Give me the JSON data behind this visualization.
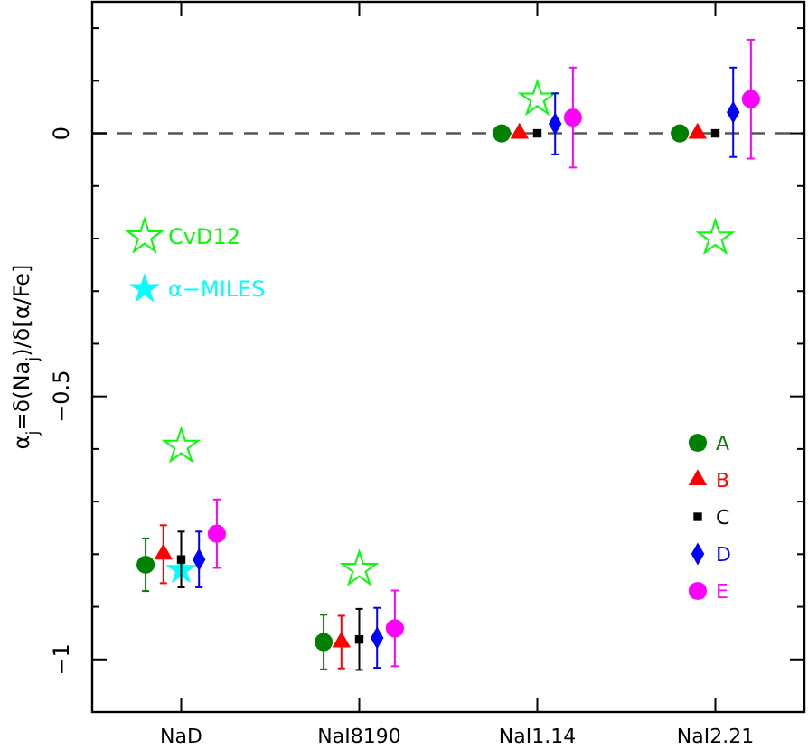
{
  "chart_data": {
    "type": "scatter",
    "ylabel": "α$_{j}$=δ(Na$_{j}$)/δ[α/Fe]",
    "categories": [
      "NaD",
      "NaI8190",
      "NaI1.14",
      "NaI2.21"
    ],
    "ylim": [
      -1.1,
      0.25
    ],
    "yticks": [
      {
        "value": 0.2,
        "label": null
      },
      {
        "value": 0.1,
        "label": null
      },
      0,
      {
        "value": -0.1,
        "label": null
      },
      {
        "value": -0.2,
        "label": null
      },
      {
        "value": -0.3,
        "label": null
      },
      {
        "value": -0.4,
        "label": null
      },
      {
        "value": -0.5,
        "label": "−0.5"
      },
      {
        "value": -0.6,
        "label": null
      },
      {
        "value": -0.7,
        "label": null
      },
      {
        "value": -0.8,
        "label": null
      },
      {
        "value": -0.9,
        "label": null
      },
      {
        "value": -1,
        "label": "−1"
      }
    ],
    "ref_lines": [
      {
        "axis": "y",
        "value": 0,
        "color": "#555555",
        "line_style": "dashed"
      }
    ],
    "legend": "right",
    "grid": false,
    "series": [
      {
        "name": "A",
        "color": "#008000",
        "marker": "circle",
        "values": [
          -0.82,
          -0.967,
          0,
          0
        ],
        "errors": [
          0.05,
          0.052,
          null,
          null
        ]
      },
      {
        "name": "B",
        "color": "#ff0000",
        "marker": "triangle",
        "values": [
          -0.8,
          -0.967,
          0,
          0
        ],
        "errors": [
          0.055,
          0.05,
          null,
          null
        ]
      },
      {
        "name": "C",
        "color": "#000000",
        "marker": "square",
        "values": [
          -0.81,
          -0.962,
          0,
          0
        ],
        "errors": [
          0.053,
          0.058,
          null,
          null
        ]
      },
      {
        "name": "D",
        "color": "#0000ff",
        "marker": "diamond",
        "values": [
          -0.81,
          -0.959,
          0.018,
          0.04
        ],
        "errors": [
          0.053,
          0.057,
          0.058,
          0.085
        ]
      },
      {
        "name": "E",
        "color": "#ff00ff",
        "marker": "circle",
        "values": [
          -0.761,
          -0.941,
          0.03,
          0.065
        ],
        "errors": [
          0.065,
          0.072,
          0.095,
          0.113
        ]
      },
      {
        "name": "CvD12",
        "color": "#00ff00",
        "marker": "star-open",
        "x": [
          "NaD",
          "NaI8190",
          "NaI1.14",
          "NaI2.21"
        ],
        "values": [
          -0.595,
          -0.829,
          0.065,
          -0.199
        ]
      },
      {
        "name": "α−MILES",
        "color": "#00ffff",
        "marker": "star",
        "x": [
          "NaD"
        ],
        "values": [
          -0.83
        ]
      }
    ]
  }
}
